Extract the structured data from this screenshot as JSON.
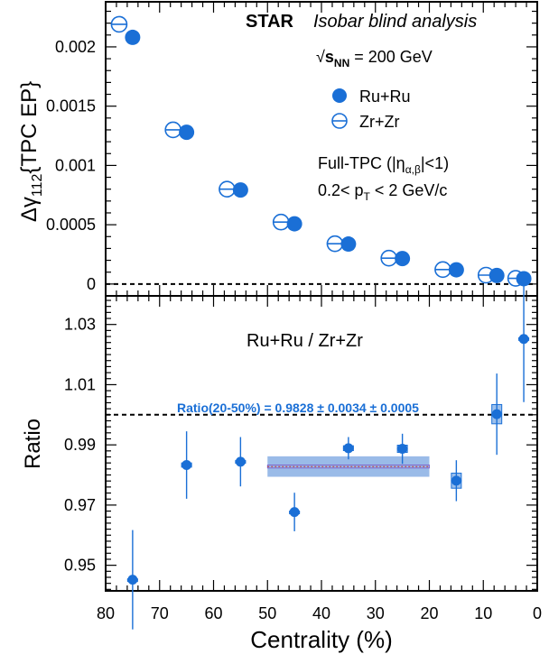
{
  "colors": {
    "ru": "#1a6fd6",
    "zr": "#1a6fd6",
    "band": "#8fb4e6",
    "sys_box": "#9cc0ec",
    "annotation": "#1a6fd6",
    "frame": "#000000"
  },
  "text": {
    "experiment": "STAR",
    "analysis": "Isobar blind analysis",
    "energy_sqrt": "√",
    "energy_s": "s",
    "energy_sub": "NN",
    "energy_rest": " = 200 GeV",
    "cut1_pre": "Full-TPC (|η",
    "cut1_sub": "α,β",
    "cut1_post": "|<1)",
    "cut2_pre": "0.2< p",
    "cut2_sub": "T",
    "cut2_post": " < 2 GeV/c",
    "ratio_title": "Ru+Ru / Zr+Zr",
    "ratio_annotation": "Ratio(20-50%) = 0.9828 ± 0.0034 ± 0.0005",
    "top_ylabel_main": "Δγ",
    "top_ylabel_sub": "112",
    "top_ylabel_rest": "{TPC EP}",
    "bottom_ylabel": "Ratio",
    "xlabel": "Centrality (%)"
  },
  "chart_data": [
    {
      "type": "scatter",
      "panel": "top",
      "xlim": [
        80,
        0
      ],
      "ylim": [
        -0.0001,
        0.00238
      ],
      "yticks": [
        "0",
        "0.0005",
        "0.001",
        "0.0015",
        "0.002"
      ],
      "ytick_values": [
        0,
        0.0005,
        0.001,
        0.0015,
        0.002
      ],
      "reference_line": 0,
      "legend_placement": "top-right",
      "series": [
        {
          "name": "Ru+Ru",
          "marker": "filled-circle",
          "x": [
            75,
            65,
            55,
            45,
            35,
            25,
            15,
            7.5,
            2.5
          ],
          "y": [
            0.00208,
            0.00128,
            0.000793,
            0.000508,
            0.000337,
            0.000215,
            0.00012,
            7.2e-05,
            4.5e-05
          ]
        },
        {
          "name": "Zr+Zr",
          "marker": "open-circle-hbar",
          "x": [
            77.5,
            67.5,
            57.5,
            47.5,
            37.5,
            27.5,
            17.5,
            9.5,
            4.0
          ],
          "y": [
            0.00219,
            0.0013,
            0.0008,
            0.000522,
            0.00034,
            0.000218,
            0.000122,
            7.5e-05,
            4.8e-05
          ]
        }
      ]
    },
    {
      "type": "scatter",
      "panel": "bottom",
      "xlim": [
        80,
        0
      ],
      "ylim": [
        0.9415,
        1.0395
      ],
      "xticks": [
        "80",
        "70",
        "60",
        "50",
        "40",
        "30",
        "20",
        "10",
        "0"
      ],
      "xtick_values": [
        80,
        70,
        60,
        50,
        40,
        30,
        20,
        10,
        0
      ],
      "yticks": [
        "0.95",
        "0.97",
        "0.99",
        "1.01",
        "1.03"
      ],
      "ytick_values": [
        0.95,
        0.97,
        0.99,
        1.01,
        1.03
      ],
      "reference_line": 1.0,
      "series": [
        {
          "name": "Ratio",
          "x": [
            75,
            65,
            55,
            45,
            35,
            25,
            15,
            7.5,
            2.5
          ],
          "y": [
            0.9452,
            0.9833,
            0.9844,
            0.9677,
            0.9889,
            0.9887,
            0.9781,
            1.0002,
            1.0252
          ],
          "stat_err": [
            0.0165,
            0.0112,
            0.0082,
            0.0064,
            0.0037,
            0.005,
            0.0068,
            0.0135,
            0.021
          ],
          "sys_err": [
            0.0003,
            0.0007,
            0.0004,
            0.0003,
            0.0008,
            0.0012,
            0.0025,
            0.0032,
            0.0004
          ]
        }
      ],
      "band": {
        "x": [
          50,
          20
        ],
        "value": 0.9828,
        "stat": 0.0034,
        "sys": 0.0005
      }
    }
  ]
}
